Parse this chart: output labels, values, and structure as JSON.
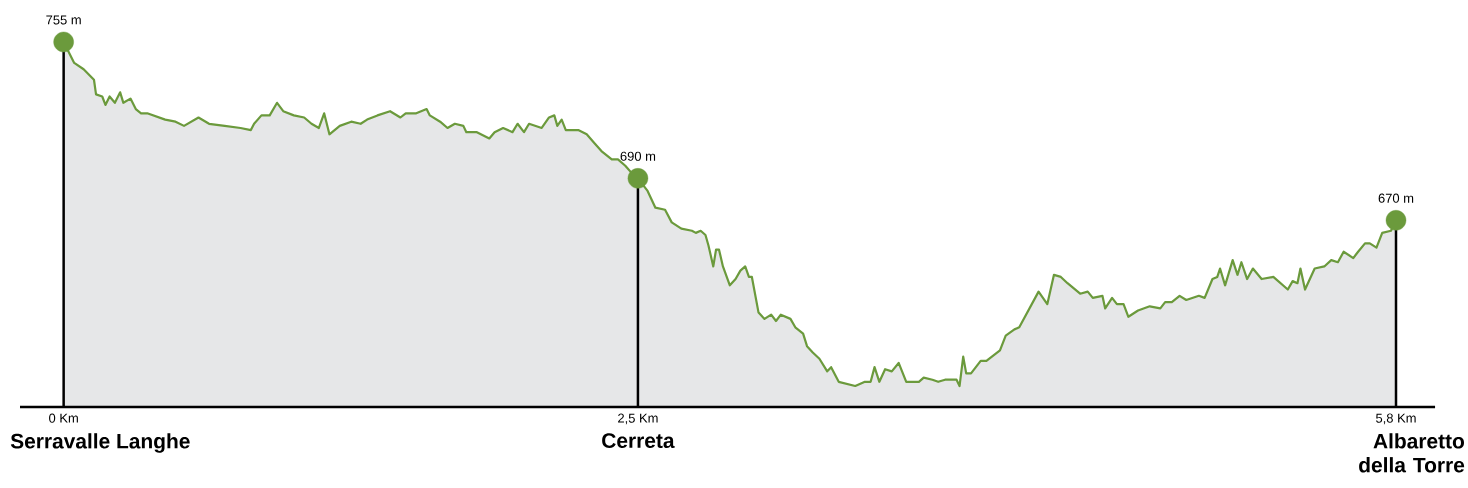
{
  "chart_data": {
    "type": "area",
    "xlim": [
      -0.19,
      5.97
    ],
    "tick_labels": "x",
    "grid": false,
    "xticks": [
      {
        "value": 0,
        "label": "0 Km"
      },
      {
        "value": 2.5,
        "label": "2,5 Km"
      },
      {
        "value": 5.8,
        "label": "5,8 Km"
      }
    ],
    "annotations": [
      "Serravalle Langhe",
      "Cerreta",
      "Albaretto della Torre"
    ],
    "series": [
      {
        "color": "#6b9a3c",
        "x": [
          0,
          0.046,
          0.087,
          0.132,
          0.141,
          0.168,
          0.182,
          0.2,
          0.223,
          0.246,
          0.26,
          0.291,
          0.314,
          0.337,
          0.364,
          0.442,
          0.487,
          0.524,
          0.587,
          0.633,
          0.701,
          0.77,
          0.815,
          0.829,
          0.861,
          0.897,
          0.929,
          0.956,
          1.002,
          1.047,
          1.079,
          1.111,
          1.134,
          1.157,
          1.202,
          1.252,
          1.293,
          1.321,
          1.366,
          1.421,
          1.466,
          1.489,
          1.535,
          1.58,
          1.594,
          1.639,
          1.671,
          1.703,
          1.74,
          1.753,
          1.799,
          1.853,
          1.876,
          1.913,
          1.954,
          1.976,
          2.004,
          2.026,
          2.081,
          2.113,
          2.136,
          2.149,
          2.168,
          2.186,
          2.24,
          2.277,
          2.309,
          2.341,
          2.386,
          2.413,
          2.445,
          2.477,
          2.5,
          2.542,
          2.576,
          2.618,
          2.647,
          2.689,
          2.735,
          2.752,
          2.773,
          2.794,
          2.807,
          2.828,
          2.84,
          2.853,
          2.87,
          2.9,
          2.925,
          2.946,
          2.967,
          2.983,
          2.996,
          3.025,
          3.051,
          3.08,
          3.101,
          3.122,
          3.164,
          3.185,
          3.219,
          3.236,
          3.261,
          3.29,
          3.324,
          3.341,
          3.374,
          3.446,
          3.488,
          3.513,
          3.53,
          3.551,
          3.576,
          3.605,
          3.635,
          3.668,
          3.723,
          3.744,
          3.782,
          3.807,
          3.837,
          3.887,
          3.9,
          3.916,
          3.929,
          3.95,
          3.992,
          4.017,
          4.076,
          4.101,
          4.139,
          4.16,
          4.244,
          4.282,
          4.311,
          4.341,
          4.37,
          4.425,
          4.458,
          4.48,
          4.522,
          4.534,
          4.564,
          4.585,
          4.614,
          4.635,
          4.677,
          4.728,
          4.774,
          4.795,
          4.824,
          4.858,
          4.887,
          4.942,
          4.967,
          5.001,
          5.022,
          5.034,
          5.056,
          5.089,
          5.11,
          5.127,
          5.152,
          5.177,
          5.215,
          5.266,
          5.329,
          5.35,
          5.371,
          5.384,
          5.404,
          5.446,
          5.488,
          5.518,
          5.547,
          5.572,
          5.614,
          5.635,
          5.665,
          5.686,
          5.715,
          5.74,
          5.778,
          5.8
        ],
        "values": [
          755,
          745,
          742,
          737,
          730,
          729,
          725,
          729,
          726,
          731,
          726,
          728,
          723,
          721,
          721,
          718,
          717,
          715,
          719,
          716,
          715,
          714,
          713,
          716,
          720,
          720,
          726,
          722,
          720,
          719,
          716,
          714,
          721,
          711,
          715,
          717,
          716,
          718,
          720,
          722,
          719,
          721,
          721,
          723,
          720,
          717,
          714,
          716,
          715,
          712,
          712,
          709,
          712,
          714,
          712,
          716,
          712,
          716,
          714,
          719,
          720,
          715,
          718,
          713,
          713,
          711,
          707,
          703,
          699,
          699,
          696,
          692,
          690,
          684,
          676,
          675,
          669,
          666,
          665,
          664,
          665,
          663,
          658,
          648,
          656,
          656,
          648,
          639,
          642,
          646,
          648,
          643,
          643,
          626,
          623,
          625,
          622,
          625,
          623,
          619,
          616,
          610,
          607,
          604,
          598,
          600,
          593,
          591,
          593,
          593,
          600,
          593,
          599,
          598,
          602,
          593,
          593,
          595,
          594,
          593,
          594,
          594,
          591,
          605,
          597,
          597,
          603,
          603,
          608,
          615,
          618,
          619,
          636,
          630,
          644,
          643,
          640,
          635,
          636,
          633,
          634,
          628,
          633,
          630,
          630,
          624,
          627,
          629,
          628,
          631,
          631,
          634,
          632,
          634,
          633,
          642,
          643,
          647,
          639,
          651,
          644,
          650,
          642,
          647,
          642,
          643,
          637,
          641,
          640,
          647,
          637,
          647,
          648,
          651,
          650,
          655,
          652,
          655,
          659,
          659,
          657,
          664,
          665,
          670
        ]
      },
      {
        "type": "lollipop",
        "color": "#6b9a3c",
        "x": [
          0,
          2.5,
          5.8
        ],
        "values": [
          755,
          690,
          670
        ],
        "value_labels": [
          "755 m",
          "690 m",
          "670 m"
        ]
      }
    ]
  }
}
